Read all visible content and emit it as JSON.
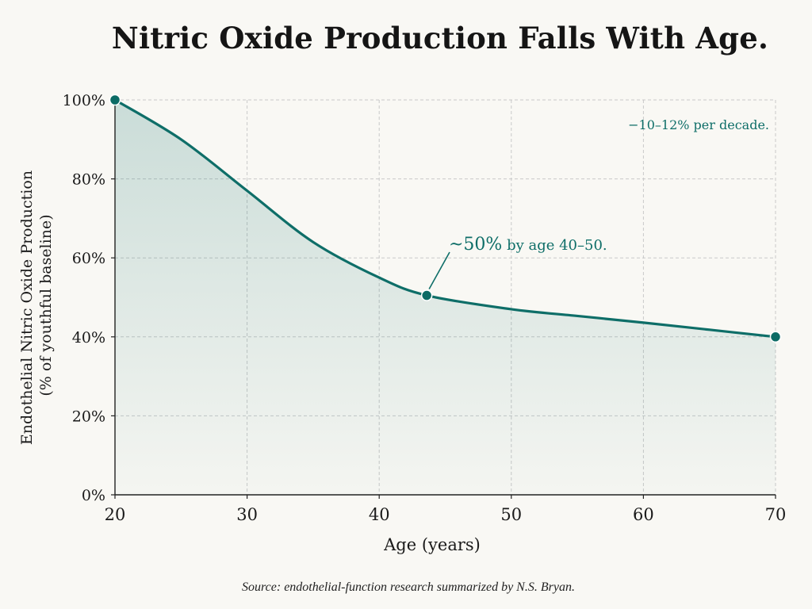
{
  "chart_data": {
    "type": "area",
    "title": "Nitric Oxide Production Falls With Age.",
    "xlabel": "Age (years)",
    "ylabel_lines": [
      "Endothelial Nitric Oxide Production",
      "(% of youthful baseline)"
    ],
    "x_ticks": [
      "20",
      "30",
      "40",
      "50",
      "60",
      "70"
    ],
    "y_ticks": [
      "0%",
      "20%",
      "40%",
      "60%",
      "80%",
      "100%"
    ],
    "xlim": [
      20,
      70
    ],
    "ylim": [
      0,
      100
    ],
    "grid": true,
    "series": [
      {
        "points": [
          {
            "x": 20,
            "y": 100
          },
          {
            "x": 25,
            "y": 90
          },
          {
            "x": 30,
            "y": 77
          },
          {
            "x": 35,
            "y": 64
          },
          {
            "x": 40,
            "y": 55
          },
          {
            "x": 43.6,
            "y": 50.5
          },
          {
            "x": 50,
            "y": 47
          },
          {
            "x": 55,
            "y": 45.3
          },
          {
            "x": 60,
            "y": 43.6
          },
          {
            "x": 65,
            "y": 41.8
          },
          {
            "x": 70,
            "y": 40
          }
        ],
        "markers": [
          {
            "x": 20,
            "y": 100
          },
          {
            "x": 43.6,
            "y": 50.5
          },
          {
            "x": 70,
            "y": 40
          }
        ]
      }
    ],
    "annotations": [
      {
        "text_main": "~50%",
        "text_rest": " by age 40–50.",
        "x": 43.6,
        "y": 50.5
      },
      {
        "text": "−10–12% per decade.",
        "position": "top-right"
      }
    ],
    "source": "Source: endothelial-function research summarized by N.S. Bryan.",
    "colors": {
      "line": "#0e6e68",
      "marker": "#0c6b65",
      "fill": "#0e6e68",
      "grid": "#c9c9c9",
      "background": "#f9f8f4"
    }
  }
}
